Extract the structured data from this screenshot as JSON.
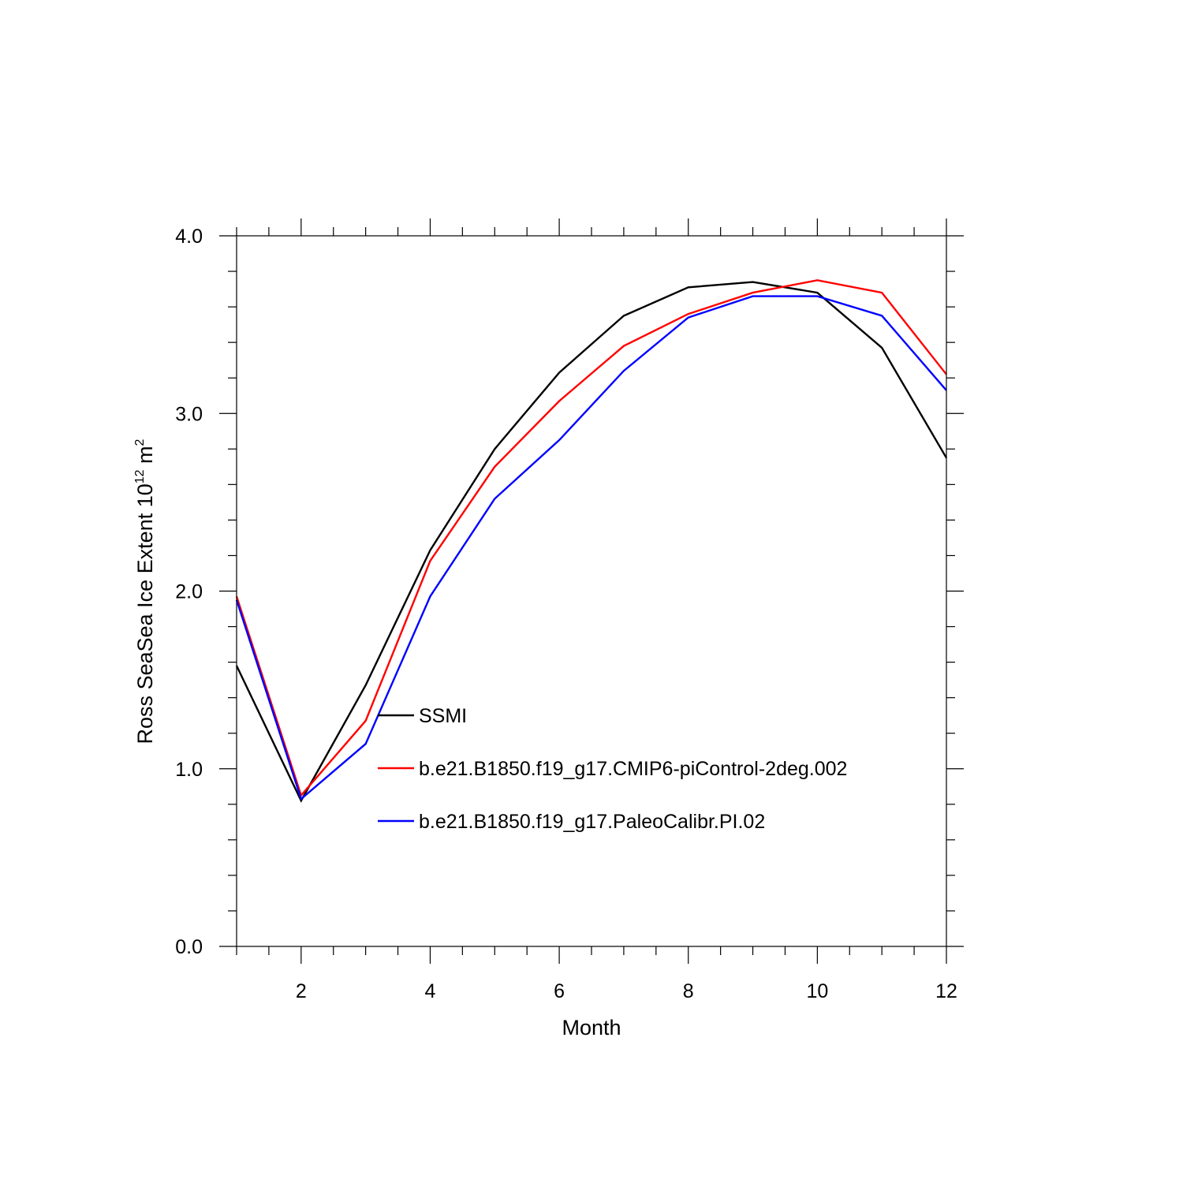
{
  "chart_data": {
    "type": "line",
    "title": "",
    "xlabel": "Month",
    "ylabel": {
      "text": "Ross SeaSea Ice Extent 10",
      "exponent": "12",
      "unit": " m",
      "unit_exponent": "2"
    },
    "xlim": [
      1,
      12
    ],
    "ylim": [
      0.0,
      4.0
    ],
    "x_ticks": [
      2,
      4,
      6,
      8,
      10,
      12
    ],
    "x_tick_labels": [
      "2",
      "4",
      "6",
      "8",
      "10",
      "12"
    ],
    "y_ticks": [
      0.0,
      1.0,
      2.0,
      3.0,
      4.0
    ],
    "y_tick_labels": [
      "0.0",
      "1.0",
      "2.0",
      "3.0",
      "4.0"
    ],
    "x_minor_step": 0.5,
    "y_minor_step": 0.2,
    "grid": false,
    "legend_position": "center",
    "x": [
      1,
      2,
      3,
      4,
      5,
      6,
      7,
      8,
      9,
      10,
      11,
      12
    ],
    "series": [
      {
        "name": "SSMI",
        "color": "#000000",
        "values": [
          1.58,
          0.82,
          1.47,
          2.23,
          2.8,
          3.23,
          3.55,
          3.71,
          3.74,
          3.68,
          3.37,
          2.75
        ]
      },
      {
        "name": "b.e21.B1850.f19_g17.CMIP6-piControl-2deg.002",
        "color": "#ff0000",
        "values": [
          1.97,
          0.85,
          1.27,
          2.17,
          2.7,
          3.07,
          3.38,
          3.56,
          3.68,
          3.75,
          3.68,
          3.22
        ]
      },
      {
        "name": "b.e21.B1850.f19_g17.PaleoCalibr.PI.02",
        "color": "#0000ff",
        "values": [
          1.95,
          0.83,
          1.14,
          1.97,
          2.52,
          2.85,
          3.24,
          3.54,
          3.66,
          3.66,
          3.55,
          3.13
        ]
      }
    ]
  }
}
